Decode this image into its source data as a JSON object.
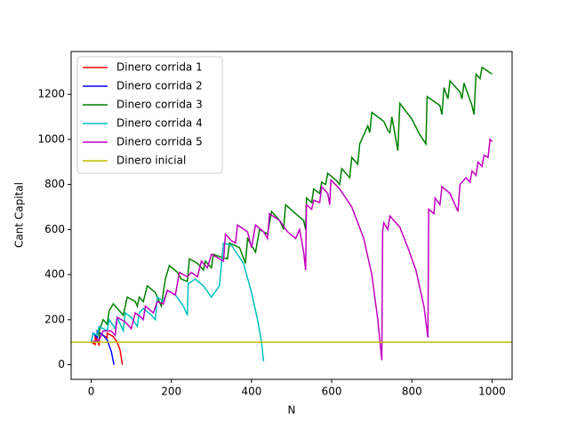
{
  "chart_data": {
    "type": "line",
    "xlabel": "N",
    "ylabel": "Cant Capital",
    "xlim": [
      -50,
      1050
    ],
    "ylim": [
      -65,
      1390
    ],
    "xticks": [
      0,
      200,
      400,
      600,
      800,
      1000
    ],
    "yticks": [
      0,
      200,
      400,
      600,
      800,
      1000,
      1200
    ],
    "legend": "upper left",
    "grid": false,
    "series": [
      {
        "name": "Dinero corrida 1",
        "color": "#ff0000",
        "x": [
          0,
          10,
          10,
          20,
          20,
          40,
          40,
          55,
          65,
          72,
          78
        ],
        "values": [
          100,
          90,
          130,
          85,
          140,
          120,
          140,
          125,
          100,
          65,
          0
        ]
      },
      {
        "name": "Dinero corrida 2",
        "color": "#0000ff",
        "x": [
          0,
          5,
          15,
          15,
          30,
          40,
          50,
          57
        ],
        "values": [
          100,
          140,
          120,
          150,
          130,
          110,
          60,
          0
        ]
      },
      {
        "name": "Dinero corrida 3",
        "color": "#008000",
        "x": [
          0,
          20,
          20,
          30,
          40,
          45,
          55,
          70,
          80,
          90,
          110,
          115,
          120,
          130,
          140,
          160,
          175,
          185,
          195,
          215,
          225,
          240,
          245,
          265,
          280,
          285,
          300,
          305,
          320,
          340,
          345,
          370,
          385,
          390,
          410,
          420,
          440,
          445,
          450,
          470,
          480,
          485,
          510,
          530,
          535,
          537,
          550,
          555,
          570,
          575,
          585,
          590,
          610,
          620,
          625,
          645,
          650,
          665,
          670,
          690,
          695,
          700,
          730,
          740,
          745,
          750,
          760,
          765,
          770,
          800,
          820,
          835,
          838,
          870,
          875,
          880,
          890,
          895,
          920,
          925,
          930,
          950,
          955,
          960,
          970,
          975,
          1000
        ],
        "values": [
          100,
          110,
          150,
          200,
          180,
          240,
          270,
          240,
          220,
          300,
          280,
          260,
          300,
          280,
          350,
          320,
          260,
          380,
          440,
          410,
          380,
          370,
          470,
          450,
          420,
          460,
          430,
          490,
          480,
          470,
          540,
          520,
          450,
          560,
          500,
          600,
          580,
          630,
          680,
          640,
          600,
          710,
          670,
          640,
          600,
          740,
          720,
          780,
          760,
          810,
          800,
          850,
          820,
          800,
          870,
          830,
          920,
          890,
          980,
          1060,
          1030,
          1120,
          1080,
          1040,
          1030,
          1100,
          1000,
          950,
          1160,
          1090,
          1020,
          980,
          1190,
          1150,
          1110,
          1230,
          1180,
          1260,
          1210,
          1180,
          1250,
          1150,
          1110,
          1290,
          1270,
          1320,
          1290
        ]
      },
      {
        "name": "Dinero corrida 4",
        "color": "#00bfbf",
        "x": [
          0,
          5,
          15,
          20,
          40,
          45,
          60,
          65,
          80,
          85,
          100,
          115,
          120,
          130,
          150,
          160,
          165,
          180,
          190,
          210,
          230,
          240,
          242,
          260,
          280,
          300,
          320,
          330,
          350,
          380,
          400,
          415,
          425,
          430
        ],
        "values": [
          100,
          140,
          130,
          170,
          150,
          200,
          160,
          210,
          150,
          230,
          210,
          170,
          230,
          250,
          220,
          200,
          300,
          280,
          330,
          310,
          260,
          220,
          360,
          380,
          350,
          300,
          350,
          540,
          530,
          450,
          320,
          200,
          100,
          15
        ]
      },
      {
        "name": "Dinero corrida 5",
        "color": "#bf00bf",
        "x": [
          0,
          20,
          30,
          50,
          60,
          65,
          85,
          100,
          110,
          125,
          130,
          135,
          155,
          165,
          180,
          190,
          210,
          220,
          240,
          250,
          265,
          275,
          290,
          300,
          310,
          330,
          335,
          350,
          360,
          365,
          390,
          400,
          410,
          430,
          440,
          445,
          470,
          490,
          510,
          520,
          530,
          535,
          537,
          550,
          555,
          570,
          575,
          590,
          595,
          598,
          620,
          650,
          680,
          700,
          715,
          725,
          727,
          730,
          740,
          745,
          770,
          790,
          810,
          830,
          840,
          842,
          855,
          858,
          870,
          875,
          895,
          905,
          915,
          920,
          935,
          945,
          950,
          960,
          965,
          975,
          980,
          990,
          995,
          1000
        ],
        "values": [
          100,
          110,
          150,
          150,
          130,
          210,
          190,
          160,
          230,
          210,
          200,
          260,
          230,
          280,
          270,
          330,
          310,
          410,
          390,
          410,
          390,
          460,
          430,
          490,
          480,
          460,
          580,
          550,
          540,
          620,
          590,
          520,
          620,
          590,
          560,
          670,
          640,
          590,
          560,
          600,
          500,
          420,
          710,
          690,
          730,
          720,
          790,
          760,
          710,
          820,
          780,
          700,
          560,
          400,
          200,
          20,
          590,
          630,
          600,
          660,
          610,
          520,
          420,
          260,
          120,
          690,
          670,
          740,
          710,
          790,
          760,
          720,
          680,
          800,
          830,
          810,
          860,
          840,
          900,
          880,
          930,
          920,
          1000,
          990
        ]
      },
      {
        "name": "Dinero inicial",
        "color": "#bfbf00",
        "x": [
          -50,
          1050
        ],
        "values": [
          100,
          100
        ]
      }
    ]
  }
}
